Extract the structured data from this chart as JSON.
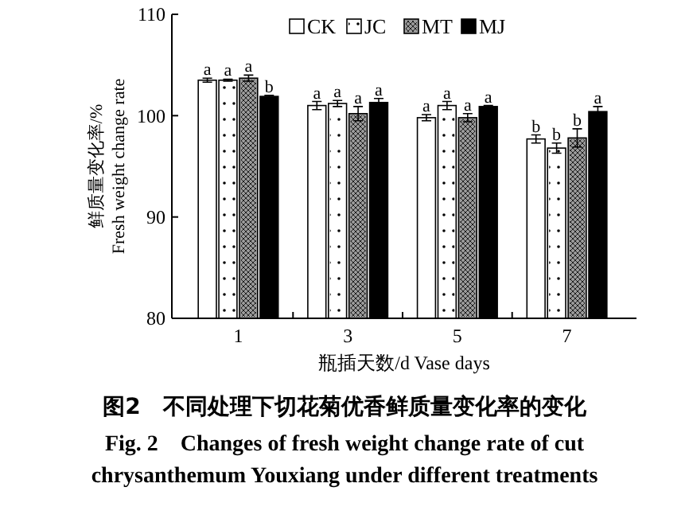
{
  "chart_data": {
    "type": "bar",
    "title": "图2　不同处理下切花菊优香鲜质量变化率的变化",
    "subtitle": "Fig. 2　Changes of fresh weight change rate of cut chrysanthemum Youxiang under different treatments",
    "xlabel": "瓶插天数/d  Vase days",
    "ylabel": "鲜质量变化率/%\nFresh weight change rate",
    "categories": [
      "1",
      "3",
      "5",
      "7"
    ],
    "series": [
      {
        "name": "CK",
        "color": "#ffffff",
        "values": [
          103.5,
          101.0,
          99.8,
          97.7
        ],
        "errors": [
          0.2,
          0.4,
          0.3,
          0.4
        ],
        "value_labels": [
          "a",
          "a",
          "a",
          "b"
        ]
      },
      {
        "name": "JC",
        "color": "#ffffff",
        "values": [
          103.5,
          101.2,
          101.0,
          96.8
        ],
        "errors": [
          0.1,
          0.3,
          0.4,
          0.5
        ],
        "value_labels": [
          "a",
          "a",
          "a",
          "b"
        ]
      },
      {
        "name": "MT",
        "color": "#9a9a9a",
        "values": [
          103.7,
          100.2,
          99.8,
          97.8
        ],
        "errors": [
          0.3,
          0.7,
          0.4,
          0.9
        ],
        "value_labels": [
          "a",
          "a",
          "a",
          "b"
        ]
      },
      {
        "name": "MJ",
        "color": "#000000",
        "values": [
          101.9,
          101.3,
          100.9,
          100.4
        ],
        "errors": [
          0.1,
          0.4,
          0.1,
          0.5
        ],
        "value_labels": [
          "b",
          "a",
          "a",
          "a"
        ]
      }
    ],
    "ylim": [
      80,
      110
    ],
    "yticks": [
      80,
      90,
      100,
      110
    ],
    "grid": false,
    "legend": "top"
  }
}
